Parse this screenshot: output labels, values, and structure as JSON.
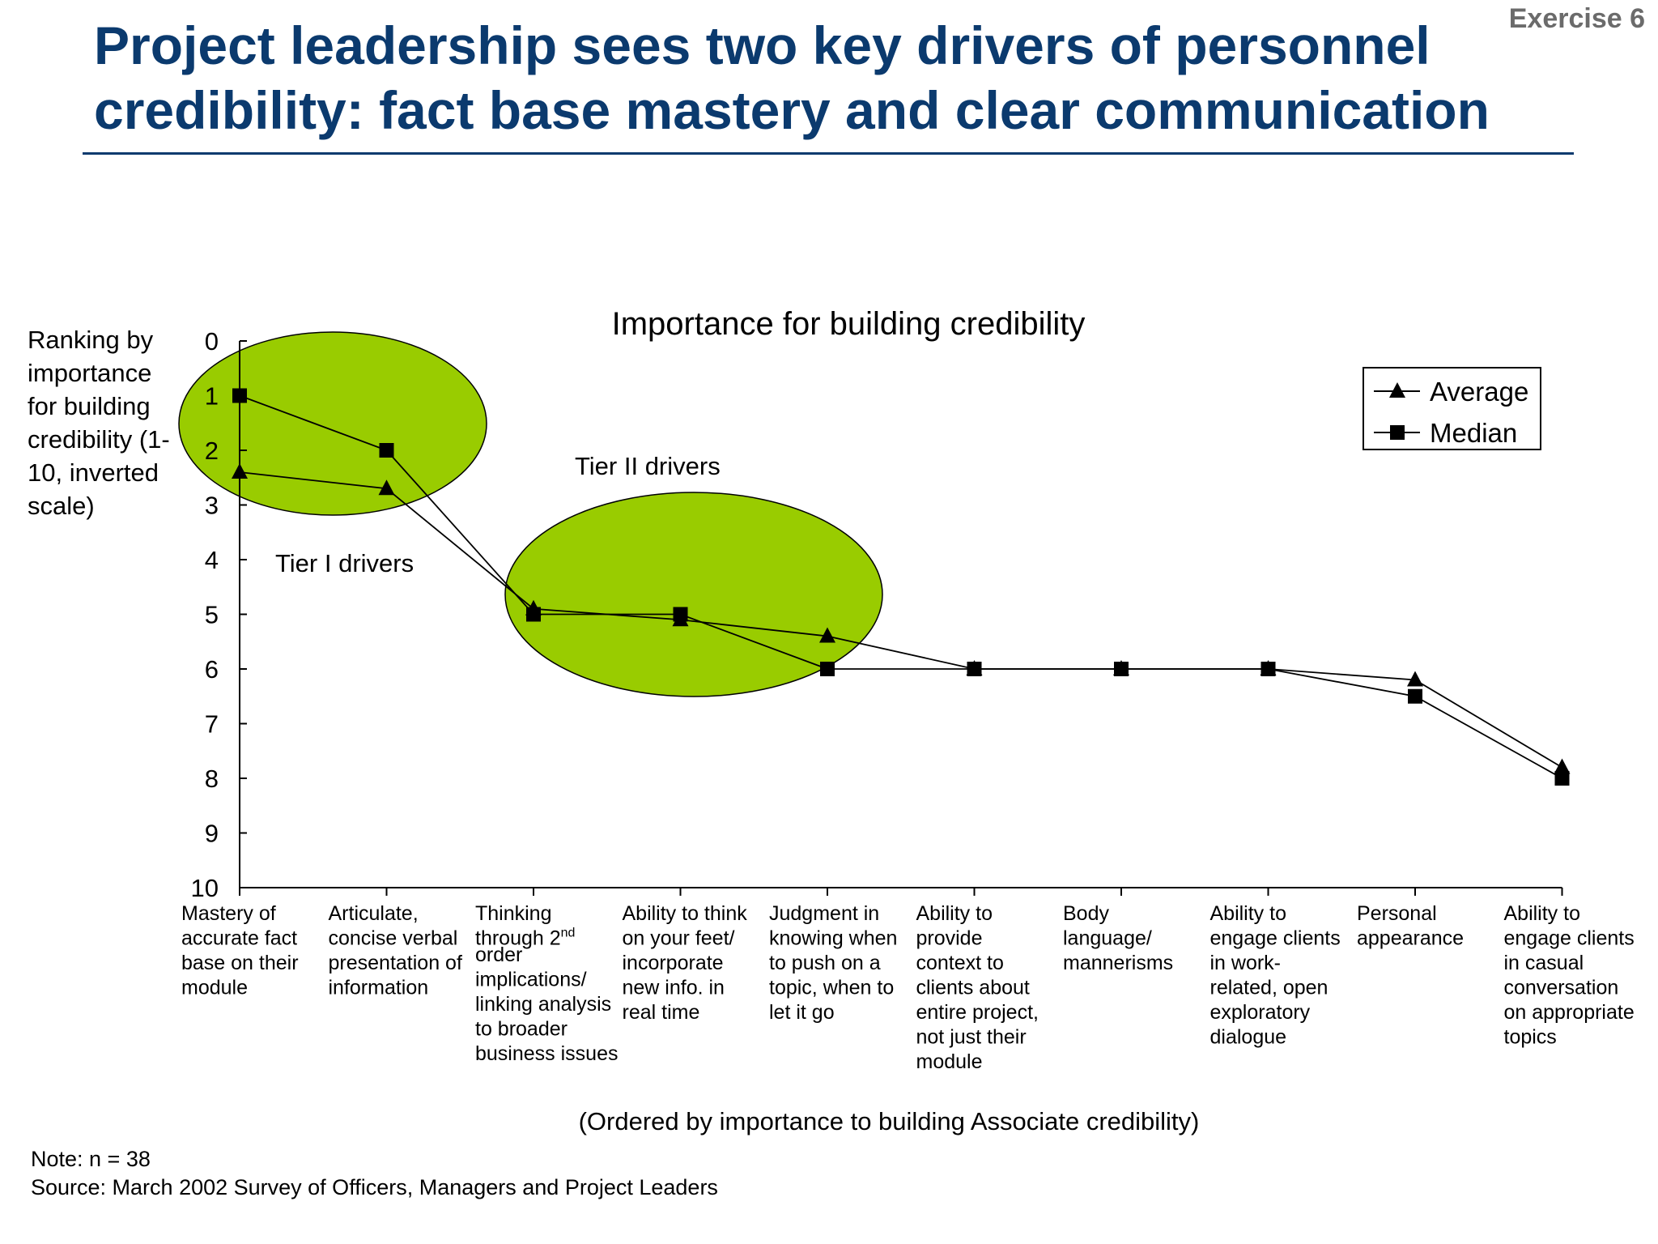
{
  "header": {
    "exercise": "Exercise 6",
    "title": "Project leadership sees two key drivers of personnel credibility: fact base mastery and clear communication"
  },
  "footer": {
    "note": "Note:  n = 38",
    "source": "Source:   March 2002 Survey of Officers, Managers and Project Leaders"
  },
  "annotations": {
    "tier1": "Tier I drivers",
    "tier2": "Tier II drivers",
    "ellipse_color": "#99cc00"
  },
  "chart_data": {
    "type": "line",
    "title": "Importance for building credibility",
    "ylabel": [
      "Ranking by",
      "importance",
      "for building",
      "credibility (1-",
      "10, inverted",
      "scale)"
    ],
    "xlabel": "(Ordered by importance to building Associate credibility)",
    "ylim": [
      0,
      10
    ],
    "y_inverted": true,
    "yticks": [
      "0",
      "1",
      "2",
      "3",
      "4",
      "5",
      "6",
      "7",
      "8",
      "9",
      "10"
    ],
    "categories": [
      [
        "Mastery of",
        "accurate fact",
        "base on their",
        "module"
      ],
      [
        "Articulate,",
        "concise verbal",
        "presentation of",
        "information"
      ],
      [
        "Thinking",
        "through 2nd",
        "order",
        "implications/",
        "linking analysis",
        "to broader",
        "business issues"
      ],
      [
        "Ability to think",
        "on your feet/",
        "incorporate",
        "new info. in",
        "real time"
      ],
      [
        "Judgment in",
        "knowing when",
        "to push on a",
        "topic, when to",
        "let it go"
      ],
      [
        "Ability to",
        "provide",
        "context to",
        "clients about",
        "entire project,",
        "not just their",
        "module"
      ],
      [
        "Body",
        "language/",
        "mannerisms"
      ],
      [
        "Ability to",
        "engage clients",
        "in work-",
        "related, open",
        "exploratory",
        "dialogue"
      ],
      [
        "Personal",
        "appearance"
      ],
      [
        "Ability to",
        "engage clients",
        "in casual",
        "conversation",
        "on appropriate",
        "topics"
      ]
    ],
    "series": [
      {
        "name": "Average",
        "marker": "triangle",
        "values": [
          2.4,
          2.7,
          4.9,
          5.1,
          5.4,
          6.0,
          6.0,
          6.0,
          6.2,
          7.8
        ]
      },
      {
        "name": "Median",
        "marker": "square",
        "values": [
          1.0,
          2.0,
          5.0,
          5.0,
          6.0,
          6.0,
          6.0,
          6.0,
          6.5,
          8.0
        ]
      }
    ],
    "legend_position": "top-right",
    "grid": false
  }
}
